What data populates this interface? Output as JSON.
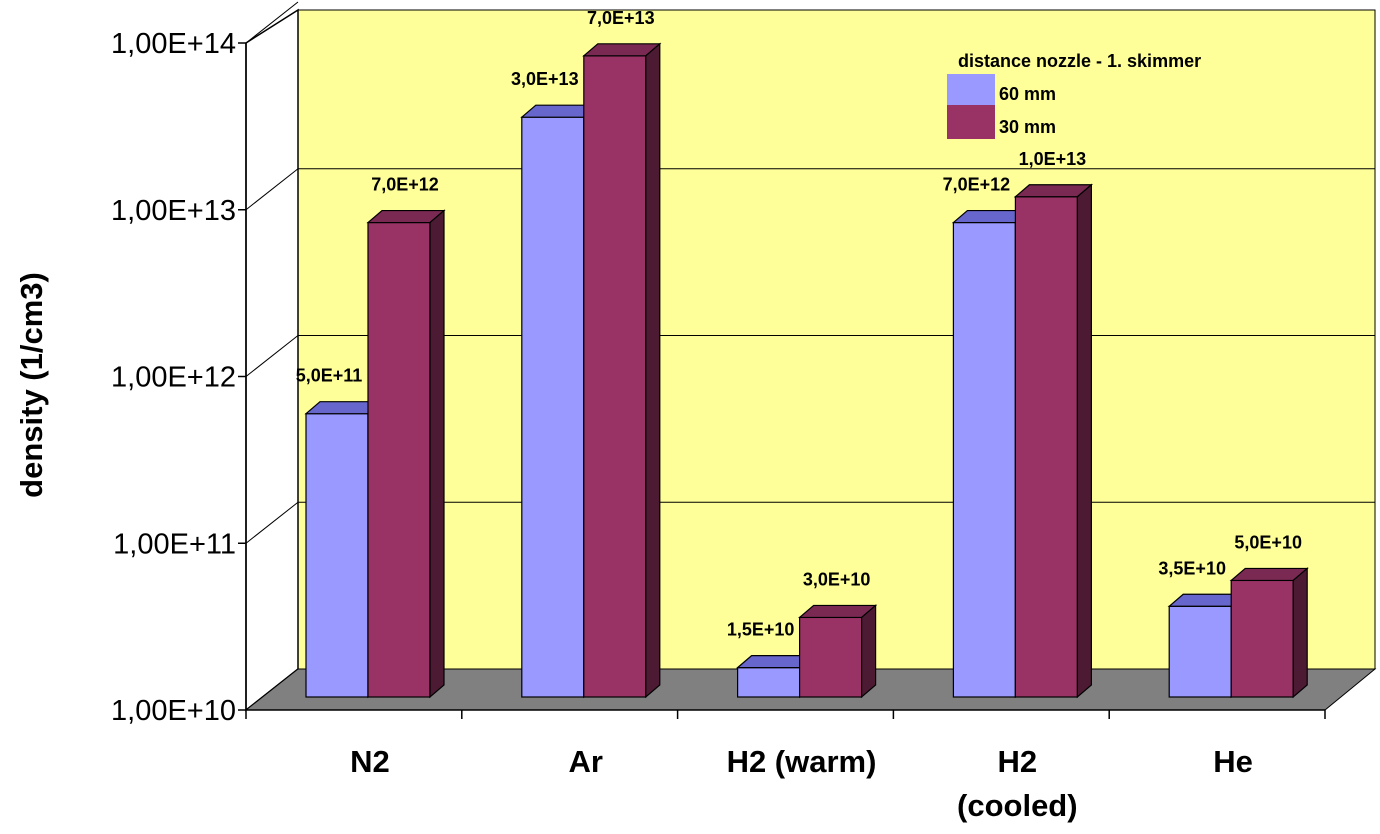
{
  "chart_data": {
    "type": "bar",
    "scale": "log",
    "three_d": true,
    "categories": [
      "N2",
      "Ar",
      "H2 (warm)",
      "H2|(cooled)",
      "He"
    ],
    "series": [
      {
        "name": "60 mm",
        "values": [
          500000000000.0,
          30000000000000.0,
          15000000000.0,
          7000000000000.0,
          35000000000.0
        ],
        "labels": [
          "5,0E+11",
          "3,0E+13",
          "1,5E+10",
          "7,0E+12",
          "3,5E+10"
        ]
      },
      {
        "name": "30 mm",
        "values": [
          7000000000000.0,
          70000000000000.0,
          30000000000.0,
          10000000000000.0,
          50000000000.0
        ],
        "labels": [
          "7,0E+12",
          "7,0E+13",
          "3,0E+10",
          "1,0E+13",
          "5,0E+10"
        ]
      }
    ],
    "ylabel": "density (1/cm3)",
    "xlabel": "",
    "ylim": [
      10000000000.0,
      100000000000000.0
    ],
    "yticks": [
      10000000000.0,
      100000000000.0,
      1000000000000.0,
      10000000000000.0,
      100000000000000.0
    ],
    "ytick_labels": [
      "1,00E+10",
      "1,00E+11",
      "1,00E+12",
      "1,00E+13",
      "1,00E+14"
    ],
    "legend": {
      "title": "distance nozzle - 1. skimmer",
      "position": "top-right"
    },
    "grid": true,
    "colors": {
      "wall": "#ffff99",
      "floor": "#808080",
      "series": [
        "#9999ff",
        "#993366"
      ],
      "series_top": [
        "#6666cc",
        "#7a2952"
      ],
      "series_side": [
        "#4d4d80",
        "#4d1a33"
      ]
    }
  }
}
